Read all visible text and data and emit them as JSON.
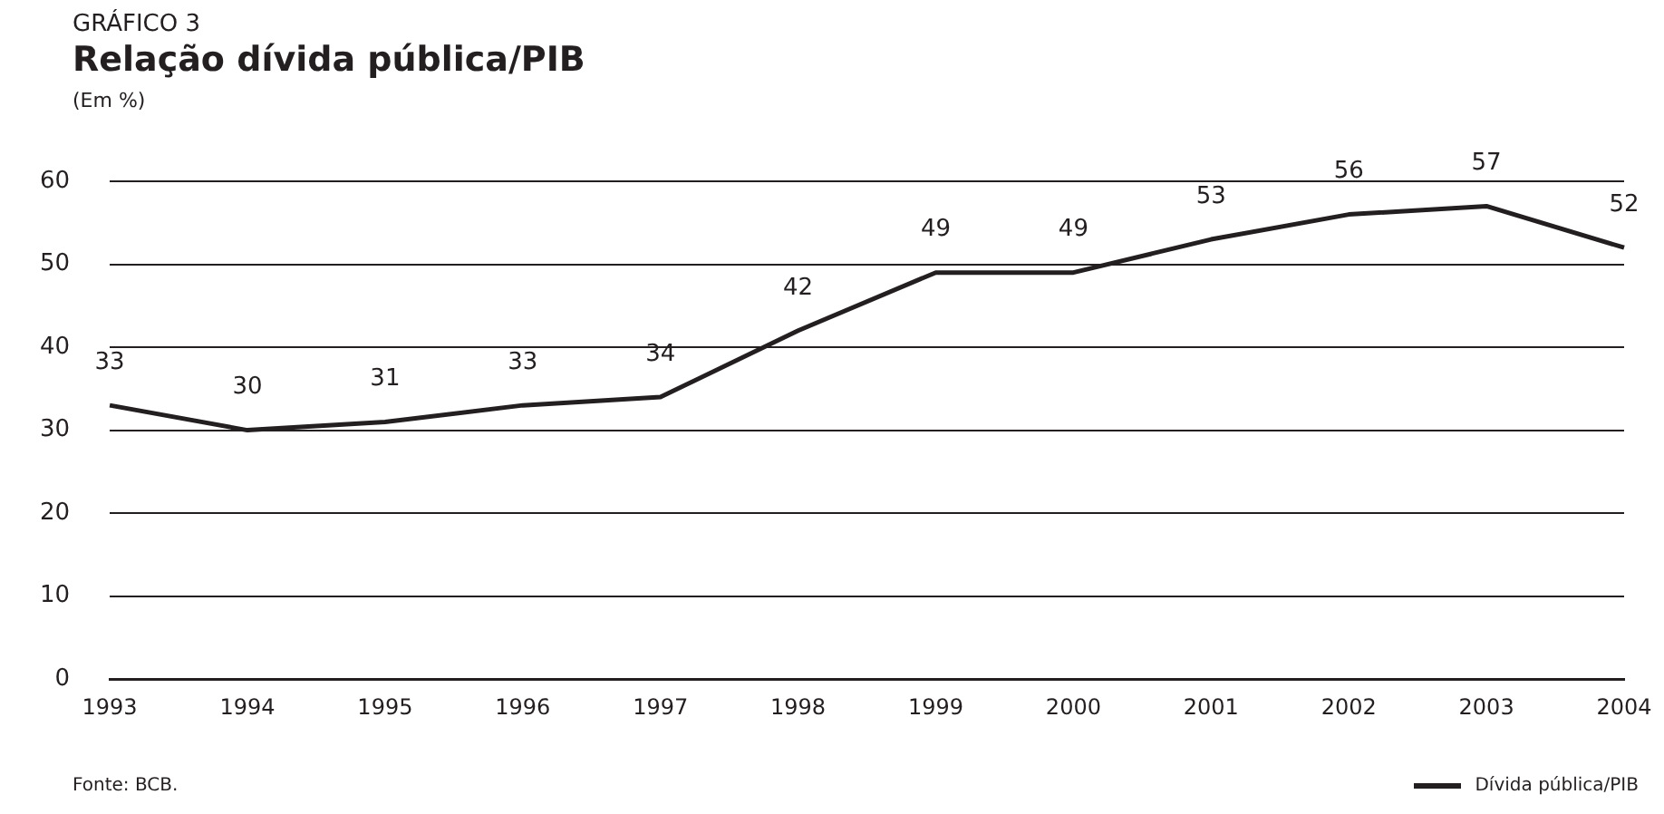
{
  "chart_data": {
    "type": "line",
    "title": "Relação dívida pública/PIB",
    "ylabel": "(Em %)",
    "annotations": [
      "GRÁFICO 3",
      "Fonte: BCB."
    ],
    "categories": [
      "1993",
      "1994",
      "1995",
      "1996",
      "1997",
      "1998",
      "1999",
      "2000",
      "2001",
      "2002",
      "2003",
      "2004"
    ],
    "series": [
      {
        "name": "Dívida pública/PIB",
        "color": "#231f20",
        "values": [
          33,
          30,
          31,
          33,
          34,
          42,
          49,
          49,
          53,
          56,
          57,
          52
        ]
      }
    ],
    "ylim": [
      0,
      60
    ],
    "yticks": [
      0,
      10,
      20,
      30,
      40,
      50,
      60
    ],
    "grid": "y",
    "legend": "bottom right",
    "data_labels": true,
    "marker": "none",
    "line_style": "solid"
  }
}
